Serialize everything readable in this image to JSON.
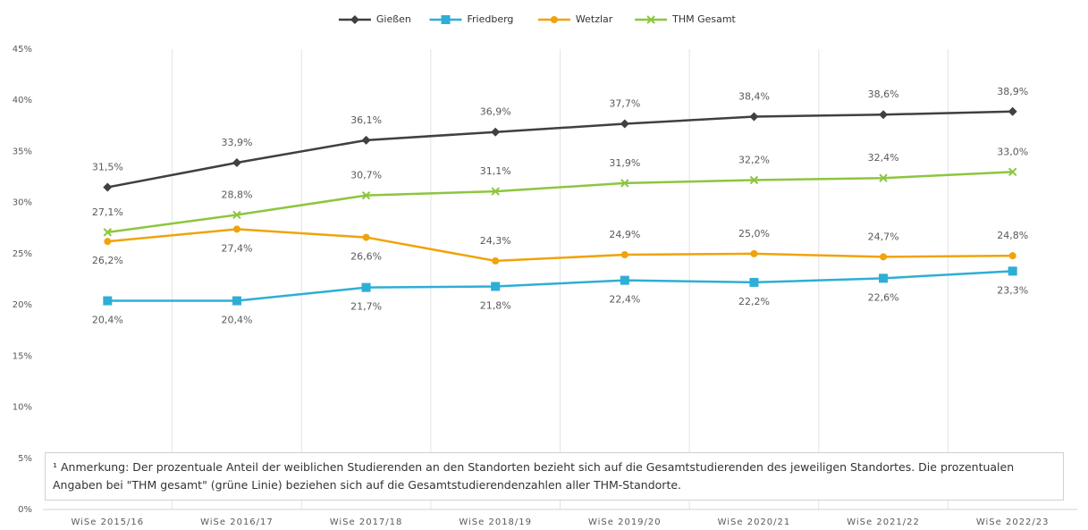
{
  "chart_data": {
    "type": "line",
    "categories": [
      "WiSe 2015/16",
      "WiSe 2016/17",
      "WiSe 2017/18",
      "WiSe 2018/19",
      "WiSe 2019/20",
      "WiSe 2020/21",
      "WiSe 2021/22",
      "WiSe 2022/23"
    ],
    "series": [
      {
        "name": "Gießen",
        "color": "#404040",
        "marker": "diamond",
        "values": [
          31.5,
          33.9,
          36.1,
          36.9,
          37.7,
          38.4,
          38.6,
          38.9
        ],
        "value_labels": [
          "31,5%",
          "33,9%",
          "36,1%",
          "36,9%",
          "37,7%",
          "38,4%",
          "38,6%",
          "38,9%"
        ]
      },
      {
        "name": "Friedberg",
        "color": "#2eaed6",
        "marker": "square",
        "values": [
          20.4,
          20.4,
          21.7,
          21.8,
          22.4,
          22.2,
          22.6,
          23.3
        ],
        "value_labels": [
          "20,4%",
          "20,4%",
          "21,7%",
          "21,8%",
          "22,4%",
          "22,2%",
          "22,6%",
          "23,3%"
        ]
      },
      {
        "name": "Wetzlar",
        "color": "#f0a30a",
        "marker": "circle",
        "values": [
          26.2,
          27.4,
          26.6,
          24.3,
          24.9,
          25.0,
          24.7,
          24.8
        ],
        "value_labels": [
          "26,2%",
          "27,4%",
          "26,6%",
          "24,3%",
          "24,9%",
          "25,0%",
          "24,7%",
          "24,8%"
        ]
      },
      {
        "name": "THM Gesamt",
        "color": "#8cc63e",
        "marker": "cross",
        "values": [
          27.1,
          28.8,
          30.7,
          31.1,
          31.9,
          32.2,
          32.4,
          33.0
        ],
        "value_labels": [
          "27,1%",
          "28,8%",
          "30,7%",
          "31,1%",
          "31,9%",
          "32,2%",
          "32,4%",
          "33,0%"
        ]
      }
    ],
    "ylim": [
      0,
      45
    ],
    "yticks": [
      {
        "value": 0,
        "label": "0%"
      },
      {
        "value": 5,
        "label": "5%"
      },
      {
        "value": 10,
        "label": "10%"
      },
      {
        "value": 15,
        "label": "15%"
      },
      {
        "value": 20,
        "label": "20%"
      },
      {
        "value": 25,
        "label": "25%"
      },
      {
        "value": 30,
        "label": "30%"
      },
      {
        "value": 35,
        "label": "35%"
      },
      {
        "value": 40,
        "label": "40%"
      },
      {
        "value": 45,
        "label": "45%"
      }
    ],
    "grid": "x",
    "legend": "top",
    "note": "¹ Anmerkung: Der prozentuale Anteil der weiblichen Studierenden an den Standorten bezieht sich auf die Gesamtstudierenden des jeweiligen Standortes. Die prozentualen Angaben bei \"THM gesamt\" (grüne Linie) beziehen sich auf die Gesamtstudierendenzahlen aller THM-Standorte."
  }
}
